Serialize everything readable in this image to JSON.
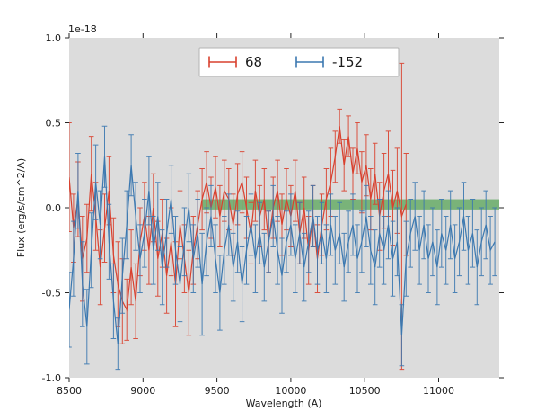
{
  "figure": {
    "offset_text": "1e-18",
    "xlabel": "Wavelength (A)",
    "ylabel": "Flux (erg/s/cm^2/A)",
    "background": "#ffffff",
    "axes_background": "#dcdcdc",
    "tick_color": "#262626"
  },
  "legend": {
    "position": "upper center",
    "entries": [
      {
        "label": "68",
        "color": "#d9402e",
        "glyph": "errorbar-glyph"
      },
      {
        "label": "-152",
        "color": "#3b78b0",
        "glyph": "errorbar-glyph"
      }
    ]
  },
  "chart_data": {
    "type": "line",
    "subtype": "errorbar-spectrum",
    "title": "",
    "xlabel": "Wavelength (A)",
    "ylabel": "Flux (erg/s/cm^2/A)",
    "y_offset_text": "1e-18",
    "y_units_multiplier": 1e-18,
    "xlim": [
      8500,
      11410
    ],
    "ylim": [
      -1.0,
      1.0
    ],
    "x_ticks": [
      8500,
      9000,
      9500,
      10000,
      10500,
      11000
    ],
    "x_tick_labels": [
      "8500",
      "9000",
      "9500",
      "10000",
      "10500",
      "11000"
    ],
    "y_ticks": [
      -1.0,
      -0.5,
      0.0,
      0.5,
      1.0
    ],
    "y_tick_labels": [
      "-1.0",
      "-0.5",
      "0.0",
      "0.5",
      "1.0"
    ],
    "grid": false,
    "legend_position": "upper center",
    "band": {
      "x0": 9400,
      "x1": 11410,
      "y0": -0.01,
      "y1": 0.05,
      "color": "#008000",
      "opacity": 0.45
    },
    "series": [
      {
        "name": "68",
        "color": "#d9402e",
        "points": [
          [
            8500,
            0.18,
            0.32
          ],
          [
            8530,
            -0.12,
            0.2
          ],
          [
            8560,
            0.05,
            0.22
          ],
          [
            8590,
            -0.3,
            0.25
          ],
          [
            8620,
            -0.18,
            0.2
          ],
          [
            8650,
            0.2,
            0.22
          ],
          [
            8680,
            -0.05,
            0.2
          ],
          [
            8710,
            -0.35,
            0.22
          ],
          [
            8740,
            -0.12,
            0.2
          ],
          [
            8770,
            0.1,
            0.2
          ],
          [
            8800,
            -0.28,
            0.22
          ],
          [
            8830,
            -0.45,
            0.25
          ],
          [
            8860,
            -0.55,
            0.25
          ],
          [
            8890,
            -0.6,
            0.18
          ],
          [
            8920,
            -0.35,
            0.22
          ],
          [
            8950,
            -0.55,
            0.22
          ],
          [
            8980,
            -0.2,
            0.2
          ],
          [
            9010,
            -0.05,
            0.2
          ],
          [
            9040,
            -0.25,
            0.2
          ],
          [
            9070,
            0.0,
            0.2
          ],
          [
            9100,
            -0.3,
            0.22
          ],
          [
            9130,
            -0.15,
            0.2
          ],
          [
            9160,
            -0.4,
            0.22
          ],
          [
            9190,
            -0.2,
            0.2
          ],
          [
            9220,
            -0.45,
            0.25
          ],
          [
            9250,
            -0.1,
            0.2
          ],
          [
            9280,
            -0.3,
            0.2
          ],
          [
            9310,
            -0.5,
            0.25
          ],
          [
            9340,
            -0.25,
            0.2
          ],
          [
            9370,
            -0.1,
            0.2
          ],
          [
            9400,
            0.05,
            0.18
          ],
          [
            9430,
            0.15,
            0.18
          ],
          [
            9460,
            0.0,
            0.18
          ],
          [
            9490,
            0.12,
            0.18
          ],
          [
            9520,
            -0.05,
            0.18
          ],
          [
            9550,
            0.1,
            0.18
          ],
          [
            9580,
            0.05,
            0.18
          ],
          [
            9610,
            -0.1,
            0.18
          ],
          [
            9640,
            0.08,
            0.18
          ],
          [
            9670,
            0.15,
            0.18
          ],
          [
            9700,
            0.0,
            0.18
          ],
          [
            9730,
            -0.15,
            0.18
          ],
          [
            9760,
            0.1,
            0.18
          ],
          [
            9790,
            -0.05,
            0.18
          ],
          [
            9820,
            0.05,
            0.18
          ],
          [
            9850,
            -0.2,
            0.18
          ],
          [
            9880,
            0.0,
            0.18
          ],
          [
            9910,
            0.1,
            0.18
          ],
          [
            9940,
            -0.1,
            0.18
          ],
          [
            9970,
            0.05,
            0.18
          ],
          [
            10000,
            -0.05,
            0.18
          ],
          [
            10030,
            0.1,
            0.18
          ],
          [
            10060,
            -0.15,
            0.18
          ],
          [
            10090,
            0.0,
            0.18
          ],
          [
            10120,
            -0.25,
            0.2
          ],
          [
            10150,
            -0.05,
            0.18
          ],
          [
            10180,
            -0.3,
            0.2
          ],
          [
            10210,
            -0.1,
            0.18
          ],
          [
            10240,
            0.05,
            0.18
          ],
          [
            10270,
            0.15,
            0.2
          ],
          [
            10300,
            0.3,
            0.15
          ],
          [
            10330,
            0.48,
            0.1
          ],
          [
            10360,
            0.25,
            0.15
          ],
          [
            10390,
            0.42,
            0.12
          ],
          [
            10420,
            0.2,
            0.15
          ],
          [
            10450,
            0.35,
            0.15
          ],
          [
            10480,
            0.15,
            0.18
          ],
          [
            10510,
            0.25,
            0.18
          ],
          [
            10540,
            0.05,
            0.18
          ],
          [
            10570,
            0.2,
            0.18
          ],
          [
            10600,
            -0.05,
            0.2
          ],
          [
            10630,
            0.1,
            0.22
          ],
          [
            10660,
            0.2,
            0.25
          ],
          [
            10690,
            0.0,
            0.22
          ],
          [
            10720,
            0.1,
            0.25
          ],
          [
            10750,
            -0.05,
            0.9
          ],
          [
            10780,
            0.02,
            0.3
          ]
        ]
      },
      {
        "name": "-152",
        "color": "#3b78b0",
        "points": [
          [
            8500,
            -0.6,
            0.22
          ],
          [
            8530,
            -0.3,
            0.22
          ],
          [
            8560,
            0.1,
            0.22
          ],
          [
            8590,
            -0.45,
            0.25
          ],
          [
            8620,
            -0.7,
            0.22
          ],
          [
            8650,
            -0.25,
            0.22
          ],
          [
            8680,
            0.15,
            0.22
          ],
          [
            8710,
            -0.1,
            0.2
          ],
          [
            8740,
            0.3,
            0.18
          ],
          [
            8770,
            -0.2,
            0.22
          ],
          [
            8800,
            -0.55,
            0.22
          ],
          [
            8830,
            -0.8,
            0.15
          ],
          [
            8860,
            -0.4,
            0.22
          ],
          [
            8890,
            -0.1,
            0.2
          ],
          [
            8920,
            0.25,
            0.18
          ],
          [
            8950,
            -0.05,
            0.2
          ],
          [
            8980,
            -0.3,
            0.2
          ],
          [
            9010,
            -0.15,
            0.2
          ],
          [
            9040,
            0.1,
            0.2
          ],
          [
            9070,
            -0.25,
            0.2
          ],
          [
            9100,
            -0.05,
            0.2
          ],
          [
            9130,
            -0.35,
            0.22
          ],
          [
            9160,
            -0.15,
            0.2
          ],
          [
            9190,
            0.05,
            0.2
          ],
          [
            9220,
            -0.25,
            0.2
          ],
          [
            9250,
            -0.45,
            0.22
          ],
          [
            9280,
            -0.2,
            0.2
          ],
          [
            9310,
            0.0,
            0.2
          ],
          [
            9340,
            -0.3,
            0.2
          ],
          [
            9370,
            -0.15,
            0.2
          ],
          [
            9400,
            -0.45,
            0.3
          ],
          [
            9430,
            -0.2,
            0.2
          ],
          [
            9460,
            -0.05,
            0.18
          ],
          [
            9490,
            -0.3,
            0.2
          ],
          [
            9520,
            -0.5,
            0.22
          ],
          [
            9550,
            -0.25,
            0.2
          ],
          [
            9580,
            -0.1,
            0.18
          ],
          [
            9610,
            -0.35,
            0.2
          ],
          [
            9640,
            -0.2,
            0.18
          ],
          [
            9670,
            -0.45,
            0.22
          ],
          [
            9700,
            -0.25,
            0.2
          ],
          [
            9730,
            -0.1,
            0.18
          ],
          [
            9760,
            -0.3,
            0.2
          ],
          [
            9790,
            -0.15,
            0.18
          ],
          [
            9820,
            -0.35,
            0.2
          ],
          [
            9850,
            -0.2,
            0.18
          ],
          [
            9880,
            -0.05,
            0.18
          ],
          [
            9910,
            -0.25,
            0.2
          ],
          [
            9940,
            -0.4,
            0.22
          ],
          [
            9970,
            -0.2,
            0.18
          ],
          [
            10000,
            -0.1,
            0.18
          ],
          [
            10030,
            -0.3,
            0.2
          ],
          [
            10060,
            -0.15,
            0.18
          ],
          [
            10090,
            -0.35,
            0.2
          ],
          [
            10120,
            -0.2,
            0.18
          ],
          [
            10150,
            -0.05,
            0.18
          ],
          [
            10180,
            -0.25,
            0.2
          ],
          [
            10210,
            -0.15,
            0.18
          ],
          [
            10240,
            -0.3,
            0.2
          ],
          [
            10270,
            -0.1,
            0.18
          ],
          [
            10300,
            -0.25,
            0.2
          ],
          [
            10330,
            -0.15,
            0.18
          ],
          [
            10360,
            -0.35,
            0.2
          ],
          [
            10390,
            -0.2,
            0.18
          ],
          [
            10420,
            -0.1,
            0.18
          ],
          [
            10450,
            -0.3,
            0.2
          ],
          [
            10480,
            -0.2,
            0.18
          ],
          [
            10510,
            -0.05,
            0.18
          ],
          [
            10540,
            -0.25,
            0.2
          ],
          [
            10570,
            -0.35,
            0.22
          ],
          [
            10600,
            -0.15,
            0.2
          ],
          [
            10630,
            -0.25,
            0.2
          ],
          [
            10660,
            -0.1,
            0.2
          ],
          [
            10690,
            -0.3,
            0.22
          ],
          [
            10720,
            -0.2,
            0.2
          ],
          [
            10750,
            -0.75,
            0.18
          ],
          [
            10780,
            -0.3,
            0.22
          ],
          [
            10810,
            -0.15,
            0.2
          ],
          [
            10840,
            -0.05,
            0.2
          ],
          [
            10870,
            -0.25,
            0.2
          ],
          [
            10900,
            -0.1,
            0.2
          ],
          [
            10930,
            -0.3,
            0.2
          ],
          [
            10960,
            -0.2,
            0.2
          ],
          [
            10990,
            -0.35,
            0.22
          ],
          [
            11020,
            -0.15,
            0.2
          ],
          [
            11050,
            -0.25,
            0.2
          ],
          [
            11080,
            -0.1,
            0.2
          ],
          [
            11110,
            -0.3,
            0.2
          ],
          [
            11140,
            -0.2,
            0.2
          ],
          [
            11170,
            -0.05,
            0.2
          ],
          [
            11200,
            -0.25,
            0.2
          ],
          [
            11230,
            -0.15,
            0.2
          ],
          [
            11260,
            -0.35,
            0.22
          ],
          [
            11290,
            -0.2,
            0.2
          ],
          [
            11320,
            -0.1,
            0.2
          ],
          [
            11350,
            -0.25,
            0.2
          ],
          [
            11380,
            -0.2,
            0.2
          ]
        ]
      }
    ]
  }
}
